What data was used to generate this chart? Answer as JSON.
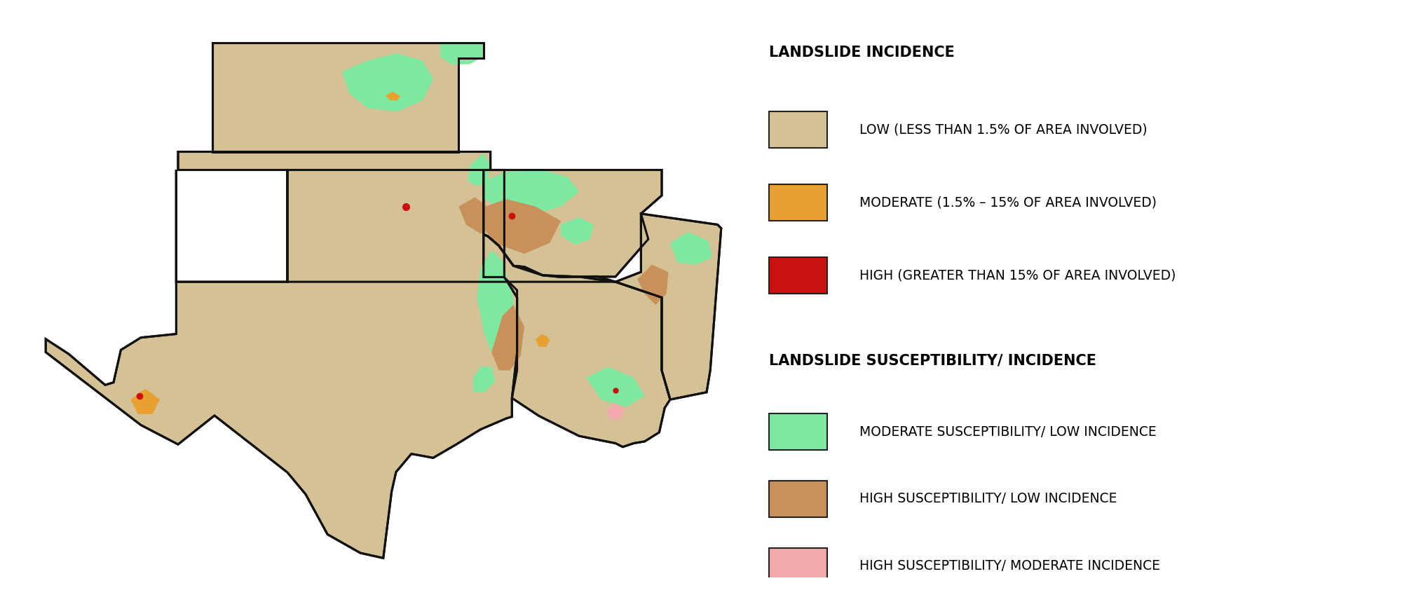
{
  "background_color": "#ffffff",
  "state_fill_color": "#d4c195",
  "state_edge_color": "#111111",
  "state_linewidth": 2.2,
  "legend_title1": "LANDSLIDE INCIDENCE",
  "legend_title2": "LANDSLIDE SUSCEPTIBILITY/ INCIDENCE",
  "color_low": "#d4c195",
  "color_moderate_inc": "#e8a030",
  "color_high_inc": "#cc1111",
  "color_green": "#7de8a0",
  "color_brown": "#c8915a",
  "color_pink": "#f0aaaa",
  "label_low": "LOW (LESS THAN 1.5% OF AREA INVOLVED)",
  "label_moderate_inc": "MODERATE (1.5% – 15% OF AREA INVOLVED)",
  "label_high_inc": "HIGH (GREATER THAN 15% OF AREA INVOLVED)",
  "label_green": "MODERATE SUSCEPTIBILITY/ LOW INCIDENCE",
  "label_brown": "HIGH SUSCEPTIBILITY/ LOW INCIDENCE",
  "label_pink": "HIGH SUSCEPTIBILITY/ MODERATE INCIDENCE",
  "map_lon_min": -107.5,
  "map_lon_max": -87.5,
  "map_lat_min": 25.5,
  "map_lat_max": 40.5
}
